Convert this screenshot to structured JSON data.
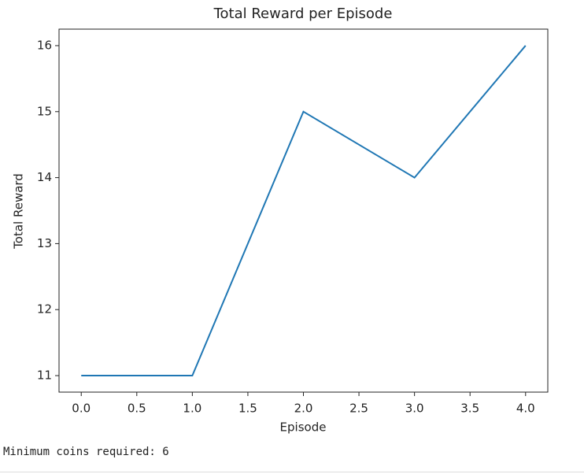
{
  "chart_data": {
    "type": "line",
    "title": "Total Reward per Episode",
    "x_label": "Episode",
    "y_label": "Total Reward",
    "x": [
      0,
      1,
      2,
      3,
      4
    ],
    "series": [
      {
        "name": "Total Reward",
        "color": "#1f77b4",
        "values": [
          11,
          11,
          15,
          14,
          16
        ]
      }
    ],
    "xlim": [
      -0.2,
      4.2
    ],
    "xticks": [
      {
        "value": 0,
        "label": "0.0"
      },
      0.5,
      {
        "value": 1,
        "label": "1.0"
      },
      1.5,
      {
        "value": 2,
        "label": "2.0"
      },
      2.5,
      {
        "value": 3,
        "label": "3.0"
      },
      3.5,
      {
        "value": 4,
        "label": "4.0"
      }
    ],
    "ylim": [
      10.75,
      16.25
    ],
    "yticks": [
      11,
      12,
      13,
      14,
      15,
      16
    ],
    "grid": false,
    "legend": false
  },
  "output": {
    "text": "Minimum coins required: 6"
  }
}
